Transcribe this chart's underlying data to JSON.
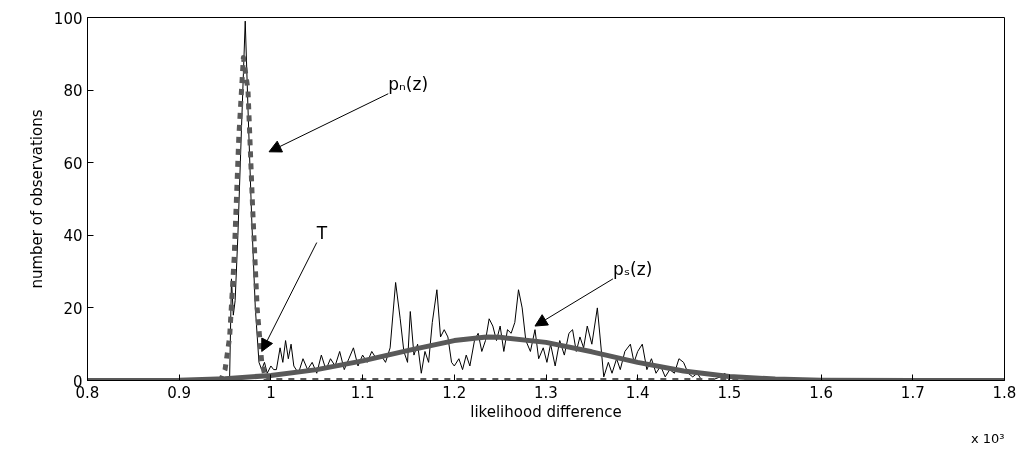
{
  "chart_data": {
    "type": "line",
    "xlabel": "likelihood difference",
    "ylabel": "number of observations",
    "xlim": [
      0.8,
      1.8
    ],
    "ylim": [
      0,
      100
    ],
    "xticks": [
      0.8,
      0.9,
      1.0,
      1.1,
      1.2,
      1.3,
      1.4,
      1.5,
      1.6,
      1.7,
      1.8
    ],
    "yticks": [
      0,
      20,
      40,
      60,
      80,
      100
    ],
    "grid": false,
    "marker": "none",
    "series": [
      {
        "color": "#000000",
        "line_style": "solid",
        "x": [
          0.8,
          0.95,
          0.955,
          0.957,
          0.959,
          0.961,
          0.964,
          0.968,
          0.972,
          0.975,
          0.979,
          0.983,
          0.987,
          0.99,
          0.993,
          0.996,
          1.0,
          1.003,
          1.006,
          1.01,
          1.013,
          1.016,
          1.019,
          1.022,
          1.025,
          1.03,
          1.035,
          1.04,
          1.045,
          1.05,
          1.055,
          1.06,
          1.065,
          1.07,
          1.075,
          1.08,
          1.085,
          1.09,
          1.095,
          1.1,
          1.105,
          1.11,
          1.115,
          1.12,
          1.125,
          1.13,
          1.136,
          1.141,
          1.145,
          1.149,
          1.152,
          1.156,
          1.16,
          1.164,
          1.168,
          1.172,
          1.176,
          1.181,
          1.185,
          1.189,
          1.193,
          1.197,
          1.2,
          1.205,
          1.209,
          1.213,
          1.217,
          1.222,
          1.226,
          1.23,
          1.234,
          1.238,
          1.242,
          1.246,
          1.25,
          1.254,
          1.258,
          1.262,
          1.266,
          1.27,
          1.274,
          1.278,
          1.283,
          1.288,
          1.292,
          1.297,
          1.301,
          1.305,
          1.31,
          1.315,
          1.32,
          1.325,
          1.329,
          1.333,
          1.337,
          1.341,
          1.345,
          1.35,
          1.356,
          1.363,
          1.368,
          1.372,
          1.377,
          1.381,
          1.386,
          1.392,
          1.396,
          1.4,
          1.405,
          1.41,
          1.415,
          1.42,
          1.425,
          1.43,
          1.435,
          1.44,
          1.445,
          1.45,
          1.455,
          1.46,
          1.465,
          1.47,
          1.48,
          1.49,
          1.495,
          1.5,
          1.8
        ],
        "values": [
          0,
          0,
          1,
          28,
          18,
          22,
          40,
          70,
          99,
          75,
          45,
          20,
          5,
          3,
          5,
          2,
          4,
          3,
          3,
          9,
          5,
          11,
          6,
          10,
          4,
          2,
          6,
          3,
          5,
          2,
          7,
          3,
          6,
          4,
          8,
          3,
          6,
          9,
          4,
          7,
          5,
          8,
          6,
          7,
          5,
          9,
          27,
          17,
          8,
          5,
          19,
          7,
          10,
          2,
          8,
          5,
          16,
          25,
          12,
          14,
          12,
          5,
          4,
          6,
          3,
          7,
          4,
          11,
          13,
          8,
          11,
          17,
          15,
          11,
          15,
          8,
          14,
          13,
          16,
          25,
          20,
          11,
          8,
          14,
          6,
          9,
          5,
          10,
          4,
          11,
          7,
          13,
          14,
          8,
          12,
          9,
          15,
          10,
          20,
          1,
          5,
          2,
          6,
          3,
          8,
          10,
          5,
          8,
          10,
          3,
          6,
          2,
          4,
          1,
          3,
          2,
          6,
          5,
          2,
          1,
          2,
          0,
          0,
          1,
          2,
          0,
          0
        ]
      },
      {
        "color": "#595959",
        "line_style": "dashed",
        "x": [
          0.8,
          0.945,
          0.95,
          0.955,
          0.96,
          0.965,
          0.97,
          0.975,
          0.98,
          0.985,
          0.99,
          0.995,
          1.8
        ],
        "values": [
          0,
          0,
          3,
          12,
          34,
          67,
          89,
          80,
          48,
          20,
          5,
          0,
          0
        ]
      },
      {
        "color": "#595959",
        "line_style": "solid",
        "x": [
          0.8,
          0.9,
          0.95,
          1.0,
          1.05,
          1.1,
          1.15,
          1.2,
          1.235,
          1.25,
          1.3,
          1.35,
          1.4,
          1.45,
          1.5,
          1.55,
          1.6,
          1.7,
          1.8
        ],
        "values": [
          0,
          0.1,
          0.5,
          1.4,
          3,
          5.4,
          8.3,
          11,
          12,
          11.9,
          10.5,
          7.9,
          5,
          2.6,
          1.1,
          0.4,
          0.1,
          0,
          0
        ]
      }
    ],
    "annotations": [
      "pₙ(z)",
      {
        "text": "T",
        "x": 0.99,
        "y": 8
      },
      {
        "text": "pₛ(z)",
        "x": 1.288,
        "y": 15
      },
      "x 10³"
    ]
  }
}
